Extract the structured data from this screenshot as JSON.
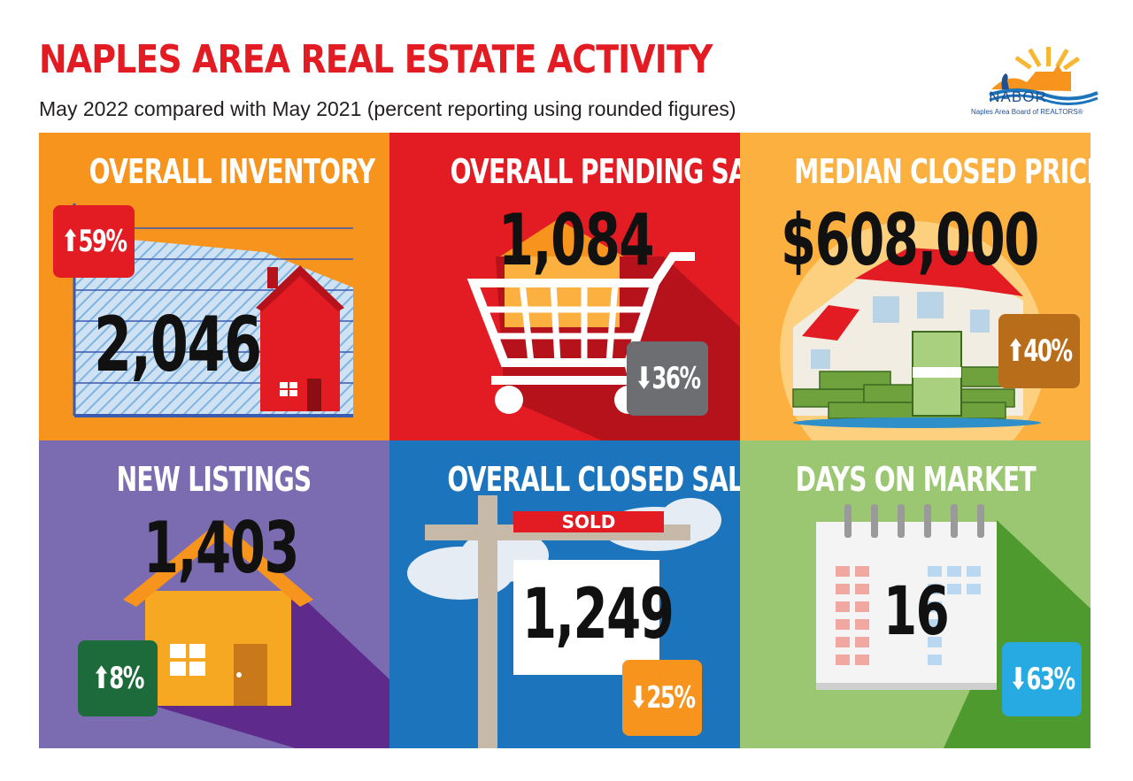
{
  "header": {
    "title": "NAPLES AREA REAL ESTATE ACTIVITY",
    "subtitle": "May 2022 compared with May 2021 (percent reporting using rounded figures)"
  },
  "logo": {
    "name": "NABOR",
    "tagline": "Naples Area Board of REALTORS®"
  },
  "panels": {
    "inventory": {
      "title": "OVERALL INVENTORY",
      "value": "2,046",
      "change": "⬆59%",
      "color": "#f7941d"
    },
    "pending": {
      "title": "OVERALL PENDING SALES",
      "value": "1,084",
      "change": "⬇36%",
      "color": "#e31b23"
    },
    "median": {
      "title": "MEDIAN CLOSED PRICE",
      "value": "$608,000",
      "change": "⬆40%",
      "color": "#fbb040"
    },
    "listings": {
      "title": "NEW LISTINGS",
      "value": "1,403",
      "change": "⬆8%",
      "color": "#7b6bb0"
    },
    "closed": {
      "title": "OVERALL CLOSED SALES",
      "value": "1,249",
      "change": "⬇25%",
      "sign": "SOLD",
      "color": "#1c75bc"
    },
    "days": {
      "title": "DAYS ON MARKET",
      "value": "16",
      "change": "⬇63%",
      "color": "#9bc672"
    }
  }
}
